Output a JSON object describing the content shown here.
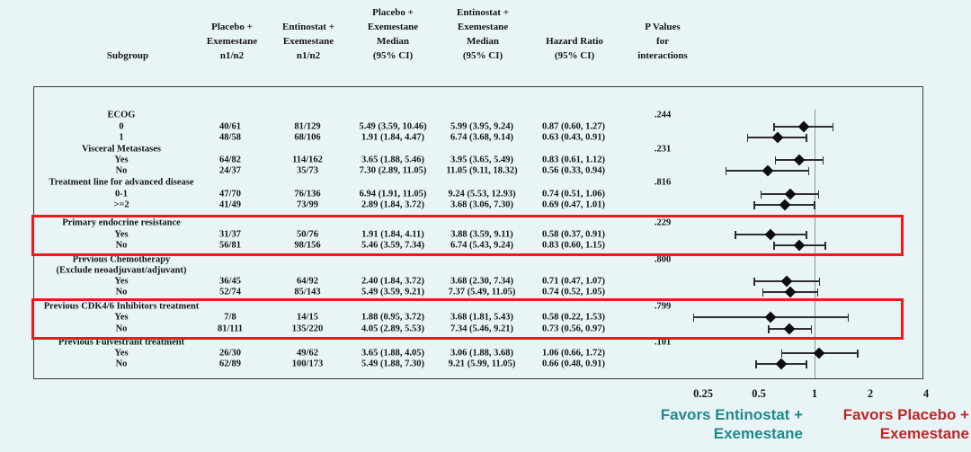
{
  "figure": {
    "background": "#e9f4f6",
    "text_color": "#15151d",
    "highlight_color": "#f01818"
  },
  "table_header": {
    "subgroup": "Subgroup",
    "placebo_n": [
      "Placebo +",
      "Exemestane",
      "n1/n2"
    ],
    "entinostat_n": [
      "Entinostat +",
      "Exemestane",
      "n1/n2"
    ],
    "placebo_median": [
      "Placebo +",
      "Exemestane",
      "Median",
      "(95% CI)"
    ],
    "entinostat_median": [
      "Entinostat +",
      "Exemestane",
      "Median",
      "(95% CI)"
    ],
    "hazard_ratio": [
      "Hazard Ratio",
      "(95% CI)"
    ],
    "p_values": [
      "P Values",
      "for",
      "interactions"
    ]
  },
  "chart_data": {
    "type": "scatter",
    "subtype": "forest-plot",
    "title": "Subgroup analysis of hazard ratios: Entinostat + Exemestane vs Placebo + Exemestane",
    "x_scale": "log",
    "x_ticks": [
      "0.25",
      "0.5",
      "1",
      "2",
      "4"
    ],
    "x_tick_values": [
      0.25,
      0.5,
      1,
      2,
      4
    ],
    "reference_line": 1,
    "groups": [
      {
        "name": "ECOG",
        "p": ".244",
        "highlighted": false,
        "rows": [
          {
            "label": "0",
            "n_placebo": "40/61",
            "n_entinostat": "81/129",
            "median_placebo": "5.49 (3.59, 10.46)",
            "median_entinostat": "5.99 (3.95, 9.24)",
            "hr_text": "0.87 (0.60, 1.27)",
            "hr": 0.87,
            "lo": 0.6,
            "hi": 1.27
          },
          {
            "label": "1",
            "n_placebo": "48/58",
            "n_entinostat": "68/106",
            "median_placebo": "1.91 (1.84, 4.47)",
            "median_entinostat": "6.74 (3.68, 9.14)",
            "hr_text": "0.63 (0.43, 0.91)",
            "hr": 0.63,
            "lo": 0.43,
            "hi": 0.91
          }
        ]
      },
      {
        "name": "Visceral Metastases",
        "p": ".231",
        "highlighted": false,
        "rows": [
          {
            "label": "Yes",
            "n_placebo": "64/82",
            "n_entinostat": "114/162",
            "median_placebo": "3.65 (1.88, 5.46)",
            "median_entinostat": "3.95 (3.65, 5.49)",
            "hr_text": "0.83 (0.61, 1.12)",
            "hr": 0.83,
            "lo": 0.61,
            "hi": 1.12
          },
          {
            "label": "No",
            "n_placebo": "24/37",
            "n_entinostat": "35/73",
            "median_placebo": "7.30 (2.89, 11.05)",
            "median_entinostat": "11.05 (9.11, 18.32)",
            "hr_text": "0.56 (0.33, 0.94)",
            "hr": 0.56,
            "lo": 0.33,
            "hi": 0.94
          }
        ]
      },
      {
        "name": "Treatment line for advanced disease",
        "p": ".816",
        "highlighted": false,
        "rows": [
          {
            "label": "0-1",
            "n_placebo": "47/70",
            "n_entinostat": "76/136",
            "median_placebo": "6.94 (1.91, 11.05)",
            "median_entinostat": "9.24 (5.53, 12.93)",
            "hr_text": "0.74 (0.51, 1.06)",
            "hr": 0.74,
            "lo": 0.51,
            "hi": 1.06
          },
          {
            "label": ">=2",
            "n_placebo": "41/49",
            "n_entinostat": "73/99",
            "median_placebo": "2.89 (1.84, 3.72)",
            "median_entinostat": "3.68 (3.06, 7.30)",
            "hr_text": "0.69 (0.47, 1.01)",
            "hr": 0.69,
            "lo": 0.47,
            "hi": 1.01
          }
        ]
      },
      {
        "name": "Primary endocrine resistance",
        "p": ".229",
        "highlighted": true,
        "rows": [
          {
            "label": "Yes",
            "n_placebo": "31/37",
            "n_entinostat": "50/76",
            "median_placebo": "1.91 (1.84, 4.11)",
            "median_entinostat": "3.88 (3.59, 9.11)",
            "hr_text": "0.58 (0.37, 0.91)",
            "hr": 0.58,
            "lo": 0.37,
            "hi": 0.91
          },
          {
            "label": "No",
            "n_placebo": "56/81",
            "n_entinostat": "98/156",
            "median_placebo": "5.46 (3.59, 7.34)",
            "median_entinostat": "6.74 (5.43, 9.24)",
            "hr_text": "0.83 (0.60, 1.15)",
            "hr": 0.83,
            "lo": 0.6,
            "hi": 1.15
          }
        ]
      },
      {
        "name": "Previous Chemotherapy",
        "name2": "(Exclude neoadjuvant/adjuvant)",
        "p": ".800",
        "highlighted": false,
        "rows": [
          {
            "label": "Yes",
            "n_placebo": "36/45",
            "n_entinostat": "64/92",
            "median_placebo": "2.40 (1.84, 3.72)",
            "median_entinostat": "3.68 (2.30, 7.34)",
            "hr_text": "0.71 (0.47, 1.07)",
            "hr": 0.71,
            "lo": 0.47,
            "hi": 1.07
          },
          {
            "label": "No",
            "n_placebo": "52/74",
            "n_entinostat": "85/143",
            "median_placebo": "5.49 (3.59, 9.21)",
            "median_entinostat": "7.37 (5.49, 11.05)",
            "hr_text": "0.74 (0.52, 1.05)",
            "hr": 0.74,
            "lo": 0.52,
            "hi": 1.05
          }
        ]
      },
      {
        "name": "Previous CDK4/6 Inhibitors treatment",
        "p": ".799",
        "highlighted": true,
        "rows": [
          {
            "label": "Yes",
            "n_placebo": "7/8",
            "n_entinostat": "14/15",
            "median_placebo": "1.88 (0.95, 3.72)",
            "median_entinostat": "3.68 (1.81, 5.43)",
            "hr_text": "0.58 (0.22, 1.53)",
            "hr": 0.58,
            "lo": 0.22,
            "hi": 1.53
          },
          {
            "label": "No",
            "n_placebo": "81/111",
            "n_entinostat": "135/220",
            "median_placebo": "4.05 (2.89, 5.53)",
            "median_entinostat": "7.34 (5.46, 9.21)",
            "hr_text": "0.73 (0.56, 0.97)",
            "hr": 0.73,
            "lo": 0.56,
            "hi": 0.97
          }
        ]
      },
      {
        "name": "Previous Fulvestrant treatment",
        "p": ".101",
        "highlighted": false,
        "rows": [
          {
            "label": "Yes",
            "n_placebo": "26/30",
            "n_entinostat": "49/62",
            "median_placebo": "3.65 (1.88, 4.05)",
            "median_entinostat": "3.06 (1.88, 3.68)",
            "hr_text": "1.06 (0.66, 1.72)",
            "hr": 1.06,
            "lo": 0.66,
            "hi": 1.72
          },
          {
            "label": "No",
            "n_placebo": "62/89",
            "n_entinostat": "100/173",
            "median_placebo": "5.49 (1.88, 7.30)",
            "median_entinostat": "9.21 (5.99, 11.05)",
            "hr_text": "0.66 (0.48, 0.91)",
            "hr": 0.66,
            "lo": 0.48,
            "hi": 0.91
          }
        ]
      }
    ],
    "footer": {
      "favors_left": [
        "Favors  Entinostat +",
        "Exemestane"
      ],
      "favors_left_color": "#1e8a8a",
      "favors_right": [
        "Favors Placebo +",
        "Exemestane"
      ],
      "favors_right_color": "#c22525"
    }
  }
}
